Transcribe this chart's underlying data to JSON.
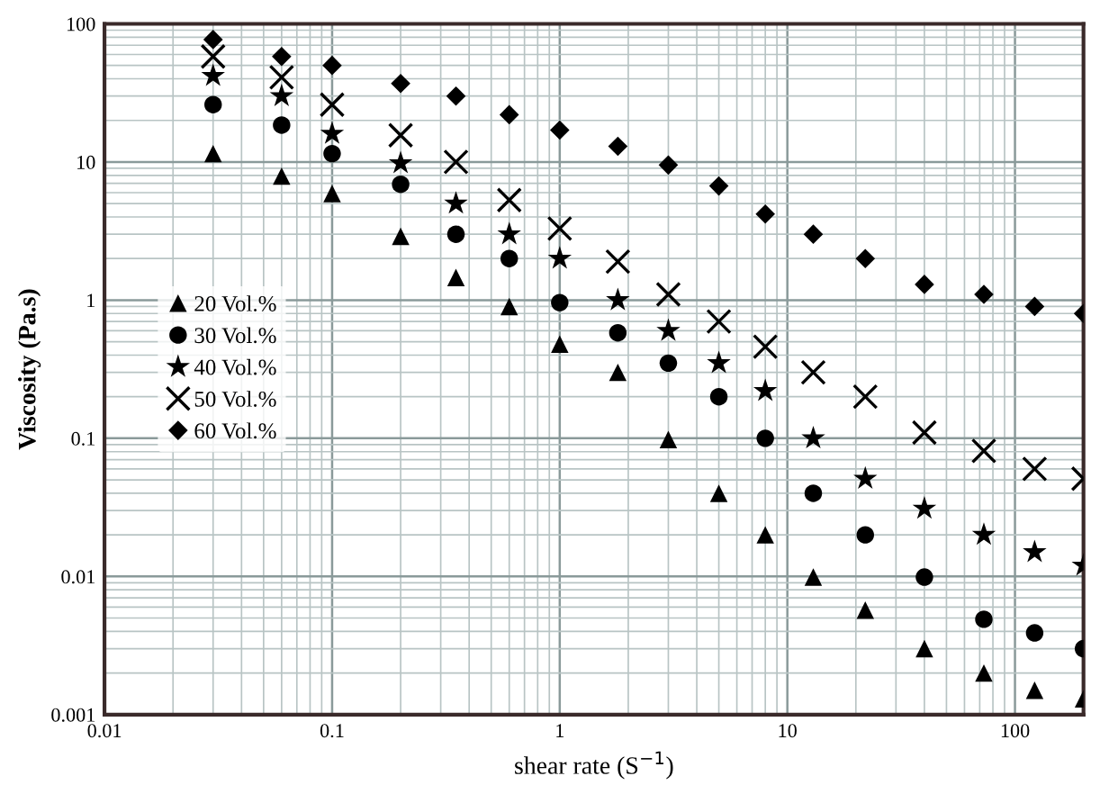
{
  "chart_data": {
    "type": "scatter",
    "xlabel": "shear rate (S$^{−1}$)",
    "ylabel": "Viscosity (Pa.s)",
    "log": "xy",
    "grid": true,
    "legend": "center left",
    "xlim": [
      0.01,
      200
    ],
    "ylim": [
      0.001,
      100
    ],
    "xticks": [
      0.01,
      0.1,
      1,
      10,
      100
    ],
    "yticks": [
      0.001,
      0.01,
      0.1,
      1,
      10,
      100
    ],
    "x": [
      0.03,
      0.06,
      0.1,
      0.2,
      0.35,
      0.6,
      1,
      1.8,
      3,
      5,
      8,
      13,
      22,
      40,
      73,
      122,
      200
    ],
    "series": [
      {
        "name": "20 Vol.%",
        "color": "#000000",
        "marker": "triangle",
        "values": [
          11.5,
          7.9,
          5.9,
          2.9,
          1.46,
          0.9,
          0.48,
          0.3,
          0.098,
          0.04,
          0.02,
          0.0099,
          0.0057,
          0.003,
          0.002,
          0.0015,
          0.0013
        ]
      },
      {
        "name": "30 Vol.%",
        "color": "#000000",
        "marker": "circle",
        "values": [
          26,
          18.5,
          11.5,
          6.9,
          3.0,
          2.0,
          0.96,
          0.58,
          0.35,
          0.2,
          0.1,
          0.04,
          0.02,
          0.0099,
          0.0049,
          0.0039,
          0.003
        ]
      },
      {
        "name": "40 Vol.%",
        "color": "#000000",
        "marker": "star",
        "values": [
          42,
          30,
          16,
          9.8,
          5.0,
          3.0,
          2.0,
          1.0,
          0.6,
          0.35,
          0.22,
          0.1,
          0.051,
          0.031,
          0.02,
          0.015,
          0.012
        ]
      },
      {
        "name": "50 Vol.%",
        "color": "#000000",
        "marker": "cross",
        "values": [
          58,
          41,
          26,
          15.6,
          10,
          5.3,
          3.3,
          1.9,
          1.1,
          0.7,
          0.46,
          0.3,
          0.2,
          0.11,
          0.081,
          0.06,
          0.051
        ]
      },
      {
        "name": "60 Vol.%",
        "color": "#000000",
        "marker": "diamond",
        "values": [
          77,
          58,
          50,
          37,
          30,
          22,
          17,
          13,
          9.5,
          6.7,
          4.2,
          3.0,
          2.0,
          1.3,
          1.1,
          0.9,
          0.8
        ]
      }
    ]
  }
}
